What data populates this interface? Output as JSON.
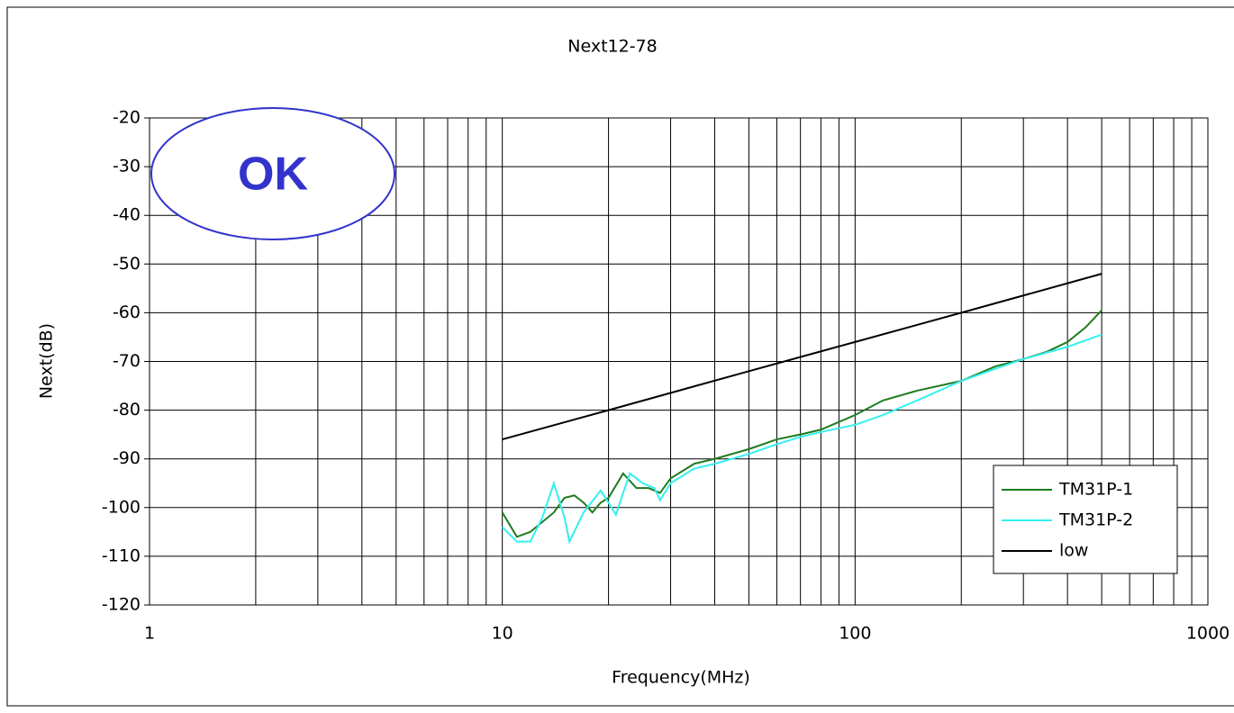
{
  "chart_data": {
    "type": "line",
    "title": "Next12-78",
    "x_label": "Frequency(MHz)",
    "y_label": "Next(dB)",
    "annotation": "OK",
    "xscale": "log",
    "xlim": [
      1,
      1000
    ],
    "xticks": [
      1,
      10,
      100,
      1000
    ],
    "xminorticks": [
      2,
      3,
      4,
      5,
      6,
      7,
      8,
      9,
      20,
      30,
      40,
      50,
      60,
      70,
      80,
      90,
      200,
      300,
      400,
      500,
      600,
      700,
      800,
      900
    ],
    "ylim": [
      -120,
      -20
    ],
    "yticks": [
      -120,
      -110,
      -100,
      -90,
      -80,
      -70,
      -60,
      -50,
      -40,
      -30,
      -20
    ],
    "grid": true,
    "legend": "lower right",
    "series": [
      {
        "name": "TM31P-1",
        "color": "#1e7b1e",
        "x": [
          10,
          11,
          12,
          14,
          15,
          16,
          17,
          18,
          19,
          20,
          22,
          24,
          26,
          28,
          30,
          35,
          40,
          50,
          60,
          70,
          80,
          100,
          120,
          150,
          200,
          250,
          300,
          350,
          400,
          450,
          500
        ],
        "values": [
          -101,
          -106,
          -105,
          -101,
          -98,
          -97.5,
          -99,
          -101,
          -99,
          -98,
          -93,
          -96,
          -96,
          -97,
          -94,
          -91,
          -90,
          -88,
          -86,
          -85,
          -84,
          -81,
          -78,
          -76,
          -74,
          -71,
          -69.5,
          -68,
          -66,
          -63,
          -59.5
        ]
      },
      {
        "name": "TM31P-2",
        "color": "#33f0f0",
        "x": [
          10,
          11,
          12,
          13,
          14,
          15,
          15.5,
          17,
          19,
          20,
          21,
          22,
          23,
          25,
          27,
          28,
          30,
          35,
          40,
          50,
          60,
          70,
          80,
          100,
          120,
          150,
          200,
          250,
          300,
          400,
          500
        ],
        "values": [
          -104,
          -107,
          -107,
          -102,
          -95,
          -102,
          -107,
          -101,
          -96.5,
          -99,
          -101.5,
          -97,
          -93,
          -95,
          -96,
          -98.5,
          -95,
          -92,
          -91,
          -89,
          -87,
          -85.5,
          -84.5,
          -83,
          -81,
          -78,
          -74,
          -71.5,
          -69.5,
          -67,
          -64.5
        ]
      },
      {
        "name": "low",
        "color": "#000000",
        "x": [
          10,
          20,
          50,
          100,
          200,
          500
        ],
        "values": [
          -86,
          -80,
          -72,
          -66,
          -60,
          -52
        ]
      }
    ]
  }
}
